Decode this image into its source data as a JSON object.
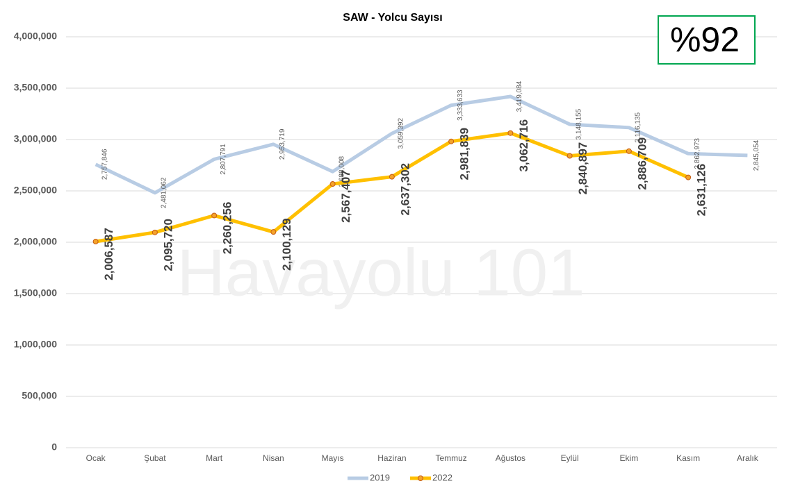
{
  "chart_data": {
    "type": "line",
    "title": "SAW - Yolcu Sayısı",
    "annotations": [
      "%92",
      "Havayolu 101"
    ],
    "categories": [
      "Ocak",
      "Şubat",
      "Mart",
      "Nisan",
      "Mayıs",
      "Haziran",
      "Temmuz",
      "Ağustos",
      "Eylül",
      "Ekim",
      "Kasım",
      "Aralık"
    ],
    "series": [
      {
        "name": "2019",
        "color": "#b8cce4",
        "values": [
          2757846,
          2481062,
          2807791,
          2953719,
          2688008,
          3059392,
          3333633,
          3419084,
          3148155,
          3116135,
          2862973,
          2845054
        ],
        "value_labels": [
          "2,757,846",
          "2,481,062",
          "2,807,791",
          "2,953,719",
          "2,688,008",
          "3,059,392",
          "3,333,633",
          "3,419,084",
          "3,148,155",
          "3,116,135",
          "2,862,973",
          "2,845,054"
        ]
      },
      {
        "name": "2022",
        "color": "#ffc000",
        "values": [
          2006587,
          2095720,
          2260256,
          2100129,
          2567407,
          2637302,
          2981839,
          3062716,
          2840897,
          2886709,
          2631126,
          null
        ],
        "value_labels": [
          "2,006,587",
          "2,095,720",
          "2,260,256",
          "2,100,129",
          "2,567,407",
          "2,637,302",
          "2,981,839",
          "3,062,716",
          "2,840,897",
          "2,886,709",
          "2,631,126",
          null
        ]
      }
    ],
    "ylim": [
      0,
      4000000
    ],
    "yticks": [
      0,
      {
        "value": 500000,
        "label": "500,000"
      },
      {
        "value": 1000000,
        "label": "1,000,000"
      },
      {
        "value": 1500000,
        "label": "1,500,000"
      },
      {
        "value": 2000000,
        "label": "2,000,000"
      },
      {
        "value": 2500000,
        "label": "2,500,000"
      },
      {
        "value": 3000000,
        "label": "3,000,000"
      },
      {
        "value": 3500000,
        "label": "3,500,000"
      },
      {
        "value": 4000000,
        "label": "4,000,000"
      }
    ],
    "grid": true,
    "legend": "bottom"
  }
}
